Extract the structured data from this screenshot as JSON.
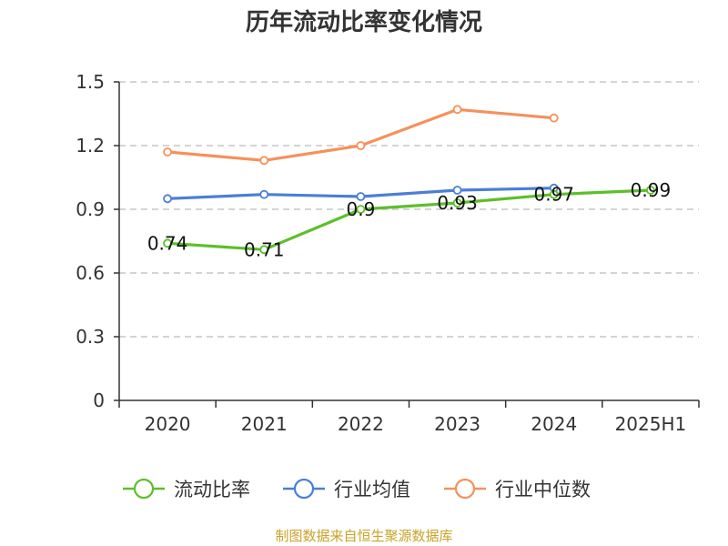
{
  "chart_data": {
    "type": "line",
    "title": "历年流动比率变化情况",
    "categories": [
      "2020",
      "2021",
      "2022",
      "2023",
      "2024",
      "2025H1"
    ],
    "yticks": [
      "0",
      "0.3",
      "0.6",
      "0.9",
      "1.2",
      "1.5"
    ],
    "ylim": [
      0,
      1.5
    ],
    "grid": true,
    "legend_position": "bottom",
    "series": [
      {
        "name": "流动比率",
        "color": "#5dbf2a",
        "values": [
          0.74,
          0.71,
          0.9,
          0.93,
          0.97,
          0.99
        ],
        "labels": [
          "0.74",
          "0.71",
          "0.9",
          "0.93",
          "0.97",
          "0.99"
        ]
      },
      {
        "name": "行业均值",
        "color": "#4a7fd6",
        "values": [
          0.95,
          0.97,
          0.96,
          0.99,
          1.0,
          null
        ]
      },
      {
        "name": "行业中位数",
        "color": "#f5915a",
        "values": [
          1.17,
          1.13,
          1.2,
          1.37,
          1.33,
          null
        ]
      }
    ]
  },
  "source_text": "制图数据来自恒生聚源数据库"
}
